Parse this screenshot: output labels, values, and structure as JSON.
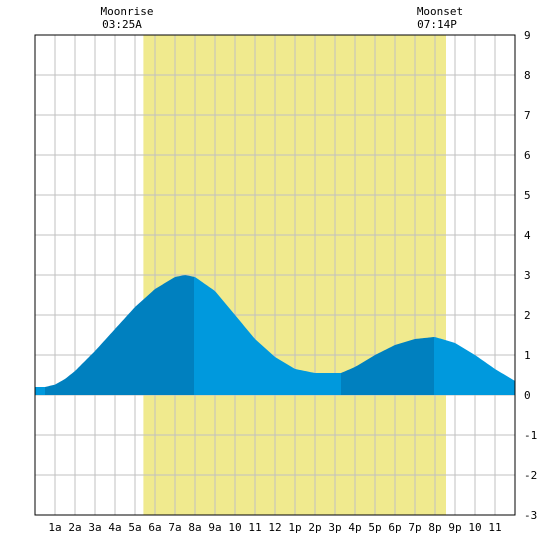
{
  "chart_data": {
    "type": "area",
    "title": "",
    "xlabel": "",
    "ylabel": "",
    "xlim": [
      0,
      24
    ],
    "ylim": [
      -3,
      9
    ],
    "y_ticks": [
      "-3",
      "-2",
      "-1",
      "0",
      "1",
      "2",
      "3",
      "4",
      "5",
      "6",
      "7",
      "8",
      "9"
    ],
    "x_ticks": [
      "1a",
      "2a",
      "3a",
      "4a",
      "5a",
      "6a",
      "7a",
      "8a",
      "9a",
      "10",
      "11",
      "12",
      "1p",
      "2p",
      "3p",
      "4p",
      "5p",
      "6p",
      "7p",
      "8p",
      "9p",
      "10",
      "11"
    ],
    "grid": true,
    "moonlight_band": {
      "start_hour": 5.42,
      "end_hour": 20.55
    },
    "moonrise": {
      "label": "Moonrise",
      "time": "03:25A"
    },
    "moonset": {
      "label": "Moonset",
      "time": "07:14P"
    },
    "series": [
      {
        "x": [
          0,
          0.5,
          1,
          1.5,
          2,
          3,
          4,
          5,
          6,
          7,
          7.5,
          8,
          9,
          10,
          11,
          12,
          13,
          14,
          15,
          15.3,
          16,
          17,
          18,
          19,
          19.95,
          20,
          21,
          22,
          23,
          24
        ],
        "y": [
          0.2,
          0.2,
          0.26,
          0.4,
          0.6,
          1.1,
          1.65,
          2.2,
          2.65,
          2.95,
          3.0,
          2.95,
          2.6,
          2.0,
          1.4,
          0.95,
          0.65,
          0.55,
          0.55,
          0.55,
          0.7,
          1.0,
          1.25,
          1.4,
          1.45,
          1.45,
          1.3,
          1.0,
          0.65,
          0.35
        ]
      }
    ],
    "tide_segments": [
      {
        "start_hour": 0,
        "end_hour": 0.5,
        "phase": "falling"
      },
      {
        "start_hour": 0.5,
        "end_hour": 7.95,
        "phase": "rising"
      },
      {
        "start_hour": 7.95,
        "end_hour": 15.3,
        "phase": "falling"
      },
      {
        "start_hour": 15.3,
        "end_hour": 19.95,
        "phase": "rising"
      },
      {
        "start_hour": 19.95,
        "end_hour": 24,
        "phase": "falling"
      }
    ],
    "colors": {
      "moonlight": "#f0ea8e",
      "rising": "#0080bf",
      "falling": "#0099dd",
      "grid": "#c0c0c0",
      "axis": "#000000"
    }
  }
}
